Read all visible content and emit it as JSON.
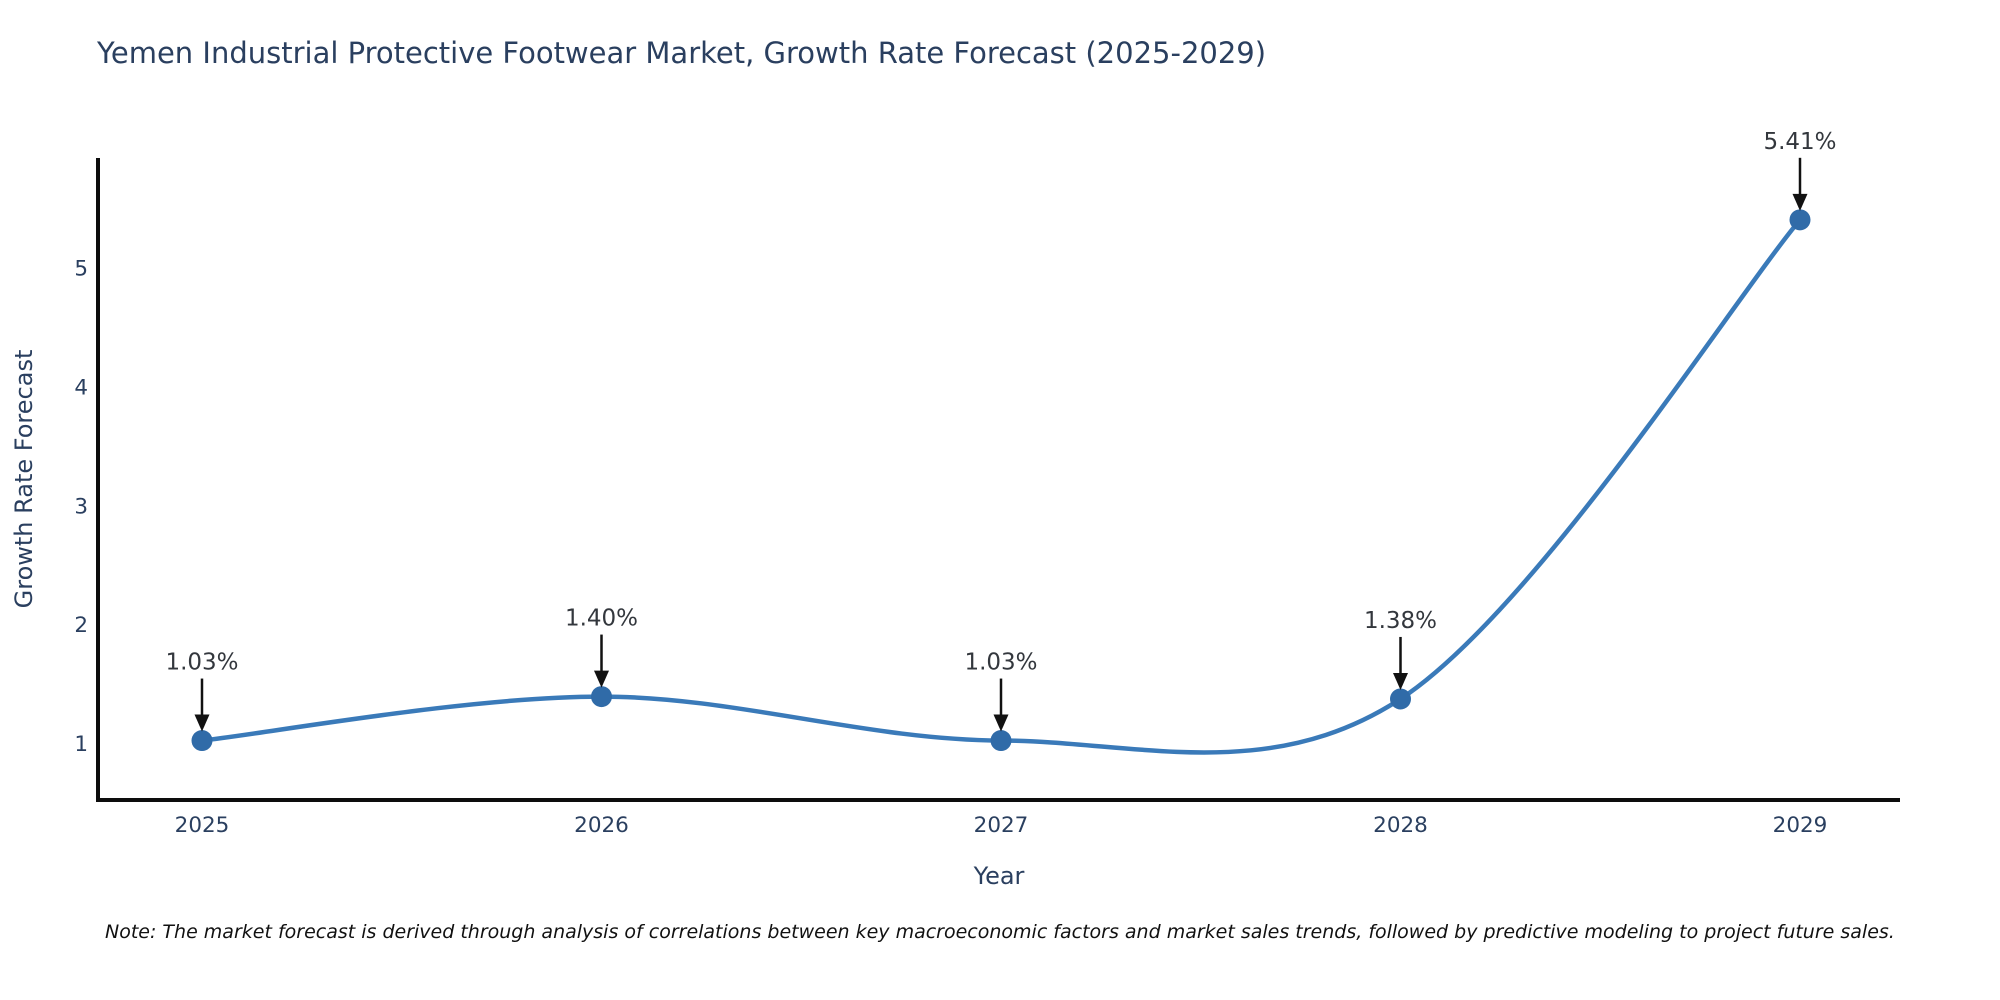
{
  "title": "Yemen Industrial Protective Footwear Market, Growth Rate Forecast (2025-2029)",
  "note": "Note: The market forecast is derived through analysis of correlations between key macroeconomic factors and market sales trends, followed by predictive modeling to project future sales.",
  "colors": {
    "background": "#ffffff",
    "title_text": "#2a3f5f",
    "tick_text": "#2a3f5f",
    "axis_title_text": "#2a3f5f",
    "axis_line": "#0d0d0d",
    "line": "#3a7ab9",
    "marker": "#306ba8",
    "annotation_text": "#33373d",
    "arrow": "#111111",
    "note_text": "#111111"
  },
  "chart_data": {
    "type": "line",
    "title": "Yemen Industrial Protective Footwear Market, Growth Rate Forecast (2025-2029)",
    "xlabel": "Year",
    "ylabel": "Growth Rate Forecast",
    "categories": [
      "2025",
      "2026",
      "2027",
      "2028",
      "2029"
    ],
    "series": [
      {
        "name": "Growth Rate Forecast",
        "values": [
          1.03,
          1.4,
          1.03,
          1.38,
          5.41
        ],
        "point_labels": [
          "1.03%",
          "1.40%",
          "1.03%",
          "1.38%",
          "5.41%"
        ]
      }
    ],
    "yticks": [
      1,
      2,
      3,
      4,
      5
    ],
    "ylim": [
      0.53,
      5.93
    ],
    "line_shape": "spline",
    "markers": true,
    "grid": false,
    "legend_position": "none"
  }
}
